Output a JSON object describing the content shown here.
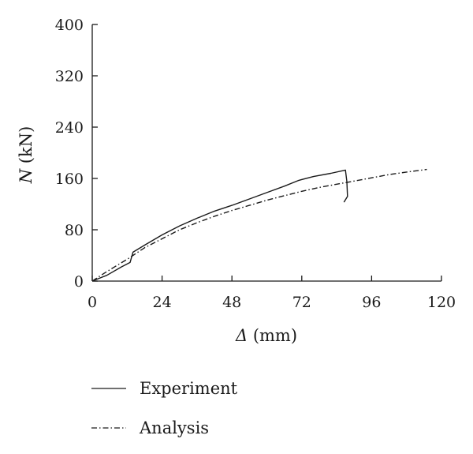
{
  "chart_data": {
    "type": "line",
    "title": "",
    "xlabel": {
      "symbol": "Δ",
      "unit": " (mm)"
    },
    "ylabel": {
      "symbol": "N",
      "unit": " (kN)"
    },
    "xlim": [
      0,
      120
    ],
    "ylim": [
      0,
      400
    ],
    "xticks": [
      0,
      24,
      48,
      72,
      96,
      120
    ],
    "yticks": [
      0,
      80,
      160,
      240,
      320,
      400
    ],
    "grid": false,
    "legend_position": "bottom",
    "series": [
      {
        "name": "Experiment",
        "style": "solid",
        "color": "#1a1a1a",
        "points": [
          [
            0,
            0
          ],
          [
            5,
            9
          ],
          [
            10,
            22
          ],
          [
            13,
            29
          ],
          [
            14,
            45
          ],
          [
            18,
            56
          ],
          [
            24,
            72
          ],
          [
            30,
            86
          ],
          [
            36,
            98
          ],
          [
            42,
            109
          ],
          [
            48,
            118
          ],
          [
            54,
            128
          ],
          [
            60,
            138
          ],
          [
            66,
            148
          ],
          [
            71,
            157
          ],
          [
            76,
            163
          ],
          [
            82,
            168
          ],
          [
            87,
            173
          ],
          [
            87.5,
            155
          ],
          [
            87.7,
            132
          ],
          [
            86.5,
            123
          ]
        ]
      },
      {
        "name": "Analysis",
        "style": "dash-dot",
        "color": "#1a1a1a",
        "points": [
          [
            0,
            0
          ],
          [
            4,
            12
          ],
          [
            8,
            23
          ],
          [
            12,
            34
          ],
          [
            14,
            40
          ],
          [
            18,
            52
          ],
          [
            24,
            66
          ],
          [
            30,
            80
          ],
          [
            36,
            91
          ],
          [
            42,
            101
          ],
          [
            48,
            110
          ],
          [
            54,
            118
          ],
          [
            60,
            126
          ],
          [
            66,
            133
          ],
          [
            72,
            140
          ],
          [
            78,
            146
          ],
          [
            84,
            151
          ],
          [
            90,
            156
          ],
          [
            96,
            161
          ],
          [
            102,
            166
          ],
          [
            108,
            170
          ],
          [
            115,
            174
          ]
        ]
      }
    ]
  }
}
